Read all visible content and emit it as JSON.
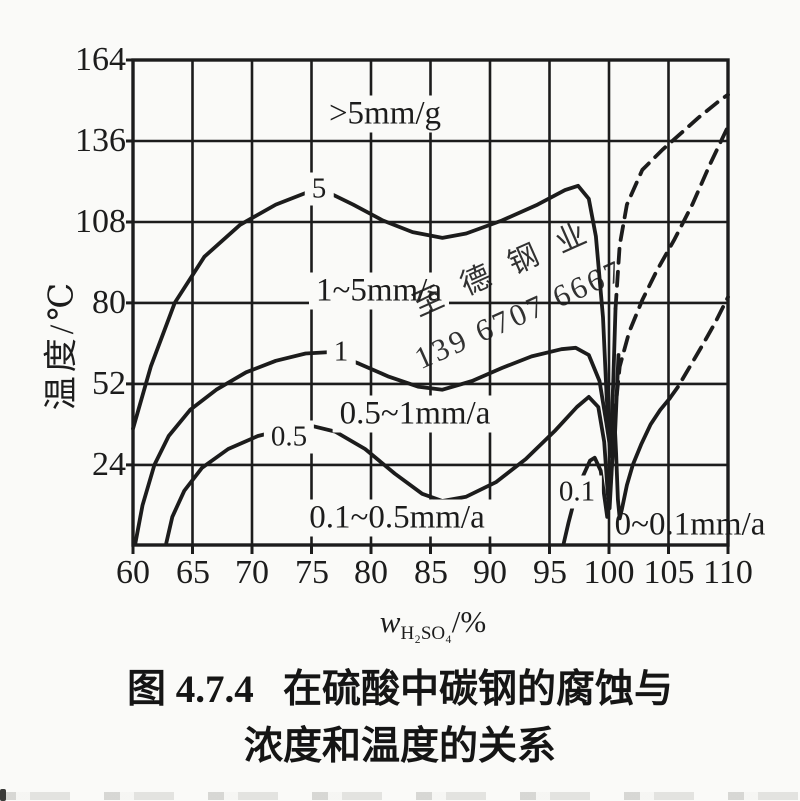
{
  "colors": {
    "ink": "#1c1c1c",
    "paper": "#fafaf8",
    "watermark": "#a9bce9"
  },
  "watermark": {
    "line1": "至德钢业",
    "line2": "139 6707 6667"
  },
  "caption": {
    "line1": "图 4.7.4   在硫酸中碳钢的腐蚀与",
    "line2": "浓度和温度的关系"
  },
  "chart_data": {
    "type": "line",
    "title": "图 4.7.4 在硫酸中碳钢的腐蚀与浓度和温度的关系",
    "xlabel_main": "w",
    "xlabel_sub": "H₂SO₄",
    "xlabel_unit": "/%",
    "ylabel": "温度/℃",
    "x_ticks": [
      60,
      65,
      70,
      75,
      80,
      85,
      90,
      95,
      100,
      105,
      110
    ],
    "y_ticks": [
      164,
      136,
      108,
      80,
      52,
      24
    ],
    "xlim": [
      60,
      110
    ],
    "ylim": [
      -3.7,
      164
    ],
    "grid": true,
    "series": [
      {
        "id": "curve-5mma",
        "name": "5 mm/a boundary",
        "dash": false,
        "points": [
          [
            60,
            36.5
          ],
          [
            61.5,
            58
          ],
          [
            63.5,
            80
          ],
          [
            66,
            96
          ],
          [
            69,
            107
          ],
          [
            72,
            114
          ],
          [
            74.5,
            118
          ],
          [
            76,
            119
          ],
          [
            78.5,
            114
          ],
          [
            81,
            108.5
          ],
          [
            83.5,
            104.5
          ],
          [
            86,
            102.5
          ],
          [
            88,
            104
          ],
          [
            91,
            108.5
          ],
          [
            94,
            114
          ],
          [
            96.3,
            119
          ],
          [
            97.4,
            120.5
          ],
          [
            98.3,
            116
          ],
          [
            98.9,
            103
          ],
          [
            99.5,
            75
          ],
          [
            99.8,
            48
          ],
          [
            100.1,
            28
          ],
          [
            100.35,
            52
          ],
          [
            100.55,
            78
          ]
        ]
      },
      {
        "id": "curve-5mma-ext",
        "name": "5 mm/a dashed continuation",
        "dash": true,
        "points": [
          [
            100.55,
            78
          ],
          [
            100.9,
            100
          ],
          [
            101.5,
            114
          ],
          [
            102.8,
            126
          ],
          [
            104.5,
            133
          ],
          [
            105.6,
            137
          ],
          [
            107.5,
            144
          ],
          [
            109.3,
            150
          ],
          [
            110,
            152
          ]
        ]
      },
      {
        "id": "curve-1mma",
        "name": "1 mm/a boundary",
        "dash": false,
        "points": [
          [
            60.2,
            -3
          ],
          [
            60.8,
            10
          ],
          [
            61.8,
            24
          ],
          [
            63,
            34
          ],
          [
            64.8,
            43
          ],
          [
            67,
            50
          ],
          [
            69.5,
            56
          ],
          [
            72,
            60
          ],
          [
            74.5,
            62.5
          ],
          [
            76.5,
            63
          ],
          [
            79,
            59
          ],
          [
            81.5,
            54.5
          ],
          [
            84,
            51
          ],
          [
            86,
            50
          ],
          [
            88.5,
            53
          ],
          [
            91,
            57.5
          ],
          [
            93.5,
            61.5
          ],
          [
            96,
            64
          ],
          [
            97.2,
            64.5
          ],
          [
            98.3,
            62
          ],
          [
            99.2,
            53
          ],
          [
            99.8,
            38
          ],
          [
            100.2,
            27
          ],
          [
            100.45,
            30
          ],
          [
            100.65,
            48
          ],
          [
            100.8,
            62
          ]
        ]
      },
      {
        "id": "curve-05mma",
        "name": "0.5 mm/a boundary",
        "dash": false,
        "points": [
          [
            62.8,
            -3
          ],
          [
            63.3,
            6
          ],
          [
            64.3,
            15
          ],
          [
            65.8,
            23
          ],
          [
            68,
            29.5
          ],
          [
            70.5,
            34
          ],
          [
            73,
            36.5
          ],
          [
            75,
            37.5
          ],
          [
            77,
            35.5
          ],
          [
            79.5,
            29.5
          ],
          [
            82,
            21
          ],
          [
            84.3,
            14
          ],
          [
            86,
            11.5
          ],
          [
            88,
            13
          ],
          [
            90.5,
            18
          ],
          [
            93,
            26
          ],
          [
            95.5,
            36
          ],
          [
            97.3,
            44
          ],
          [
            98.3,
            47.5
          ],
          [
            99.1,
            44
          ],
          [
            99.6,
            32
          ],
          [
            99.9,
            14
          ],
          [
            100.05,
            9
          ],
          [
            100.25,
            24
          ],
          [
            100.45,
            40
          ]
        ]
      },
      {
        "id": "curve-05mma-ext",
        "name": "0.5 mm/a dashed continuation",
        "dash": true,
        "points": [
          [
            100.45,
            40
          ],
          [
            100.9,
            58
          ],
          [
            101.7,
            70
          ],
          [
            102.8,
            81
          ],
          [
            104,
            91
          ],
          [
            105.5,
            102
          ],
          [
            107,
            114
          ],
          [
            108.5,
            128
          ],
          [
            110,
            141
          ]
        ]
      },
      {
        "id": "curve-01mma",
        "name": "0.1 mm/a boundary",
        "dash": false,
        "points": [
          [
            96.2,
            -3
          ],
          [
            96.6,
            4
          ],
          [
            97.1,
            12
          ],
          [
            97.8,
            20
          ],
          [
            98.4,
            25.5
          ],
          [
            98.8,
            26.5
          ],
          [
            99.3,
            22
          ],
          [
            99.65,
            12
          ],
          [
            99.85,
            6
          ],
          [
            100.05,
            12
          ],
          [
            100.3,
            28
          ],
          [
            100.45,
            40
          ],
          [
            100.6,
            28
          ],
          [
            100.75,
            12
          ],
          [
            100.9,
            5.5
          ],
          [
            101.1,
            9
          ],
          [
            101.5,
            17
          ],
          [
            102,
            24
          ],
          [
            102.7,
            31
          ],
          [
            103.5,
            38
          ],
          [
            104.3,
            43
          ],
          [
            105.1,
            47
          ]
        ]
      },
      {
        "id": "curve-01mma-ext",
        "name": "0.1 mm/a dashed continuation",
        "dash": true,
        "points": [
          [
            105.1,
            47
          ],
          [
            105.8,
            51
          ],
          [
            106.8,
            58
          ],
          [
            107.8,
            65
          ],
          [
            108.9,
            73
          ],
          [
            110,
            82
          ]
        ]
      }
    ],
    "region_labels": [
      {
        "text": ">5mm/g",
        "x": 81.2,
        "t": 145.3,
        "bg": true,
        "small": false
      },
      {
        "text": "5",
        "x": 75.6,
        "t": 119.5,
        "bg": true,
        "small": true
      },
      {
        "text": "1~5mm/a",
        "x": 80.7,
        "t": 84.0,
        "bg": true,
        "small": false
      },
      {
        "text": "1",
        "x": 77.5,
        "t": 63.0,
        "bg": true,
        "small": true
      },
      {
        "text": "0.5~1mm/a",
        "x": 83.7,
        "t": 41.5,
        "bg": true,
        "small": false
      },
      {
        "text": "0.5",
        "x": 73.1,
        "t": 33.5,
        "bg": true,
        "small": true
      },
      {
        "text": "0.1~0.5mm/a",
        "x": 82.2,
        "t": 5.5,
        "bg": true,
        "small": false
      },
      {
        "text": "0.1",
        "x": 97.3,
        "t": 14.5,
        "bg": true,
        "small": true
      },
      {
        "text": "0~0.1mm/a",
        "x": 106.8,
        "t": 3.2,
        "bg": false,
        "small": false
      }
    ]
  }
}
